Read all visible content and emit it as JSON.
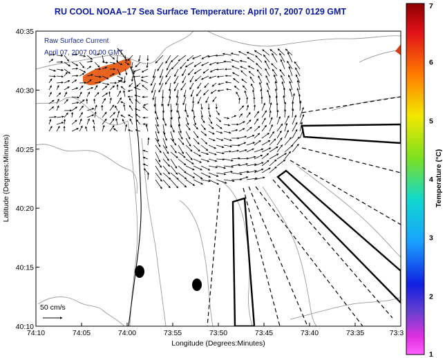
{
  "title": "RU COOL  NOAA–17  Sea Surface Temperature:  April 07, 2007 0129 GMT",
  "annotations": {
    "line1": "Raw Surface Current",
    "line2": "April 07, 2007 00:00 GMT",
    "scale": "50 cm/s"
  },
  "chart_data": {
    "type": "map",
    "xlabel": "Longitude (Degrees:Minutes)",
    "ylabel": "Latitude (Degrees:Minutes)",
    "x_ticks": [
      "74:10",
      "74:05",
      "74:00",
      "73:55",
      "73:50",
      "73:45",
      "73:40",
      "73:35",
      "73:3"
    ],
    "y_ticks": [
      "40:35",
      "40:30",
      "40:25",
      "40:20",
      "40:15",
      "40:10"
    ],
    "colorbar": {
      "label": "Temperature (°C)",
      "ticks": [
        "7",
        "6",
        "5",
        "4",
        "3",
        "2",
        "1"
      ],
      "range": [
        1,
        7
      ]
    },
    "colors": {
      "title": "#0b1a9c",
      "annotation": "#1a2a9a",
      "warm_patch": "#e8641e",
      "land_contour": "#9a9a9a"
    }
  }
}
